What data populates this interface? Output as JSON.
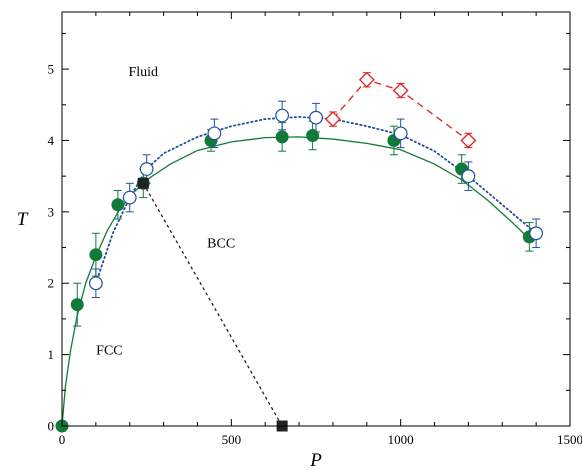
{
  "chart_data": {
    "type": "scatter",
    "xlabel": "P",
    "ylabel": "T",
    "xlim": [
      0,
      1500
    ],
    "ylim": [
      0,
      5.8
    ],
    "x_ticks": [
      0,
      500,
      1000,
      1500
    ],
    "x_tick_labels": [
      "0",
      "500",
      "1000",
      "1500"
    ],
    "y_ticks": [
      0,
      1,
      2,
      3,
      4,
      5
    ],
    "y_tick_labels": [
      "0",
      "1",
      "2",
      "3",
      "4",
      "5"
    ],
    "regions": [
      {
        "label": "Fluid",
        "x": 240,
        "y": 4.9
      },
      {
        "label": "BCC",
        "x": 470,
        "y": 2.5
      },
      {
        "label": "FCC",
        "x": 140,
        "y": 1.0
      }
    ],
    "series": [
      {
        "marker": "filled-circle",
        "color": "#117a3a",
        "errorbar_color": "#117a3a",
        "points": [
          {
            "x": 0,
            "y": 0,
            "err": 0
          },
          {
            "x": 45,
            "y": 1.7,
            "err": 0.3
          },
          {
            "x": 100,
            "y": 2.4,
            "err": 0.3
          },
          {
            "x": 165,
            "y": 3.1,
            "err": 0.2
          },
          {
            "x": 240,
            "y": 3.4,
            "err": 0.2
          },
          {
            "x": 440,
            "y": 4.0,
            "err": 0.15
          },
          {
            "x": 650,
            "y": 4.05,
            "err": 0.2
          },
          {
            "x": 740,
            "y": 4.07,
            "err": 0.2
          },
          {
            "x": 980,
            "y": 4.0,
            "err": 0.2
          },
          {
            "x": 1180,
            "y": 3.6,
            "err": 0.2
          },
          {
            "x": 1380,
            "y": 2.65,
            "err": 0.2
          }
        ]
      },
      {
        "marker": "open-circle",
        "color": "#1f4fa0",
        "errorbar_color": "#1f4fa0",
        "points": [
          {
            "x": 100,
            "y": 2.0,
            "err": 0.2
          },
          {
            "x": 200,
            "y": 3.2,
            "err": 0.2
          },
          {
            "x": 250,
            "y": 3.6,
            "err": 0.2
          },
          {
            "x": 450,
            "y": 4.1,
            "err": 0.2
          },
          {
            "x": 650,
            "y": 4.35,
            "err": 0.2
          },
          {
            "x": 750,
            "y": 4.32,
            "err": 0.2
          },
          {
            "x": 1000,
            "y": 4.1,
            "err": 0.2
          },
          {
            "x": 1200,
            "y": 3.5,
            "err": 0.2
          },
          {
            "x": 1400,
            "y": 2.7,
            "err": 0.2
          }
        ]
      },
      {
        "marker": "open-diamond",
        "color": "#e0201b",
        "errorbar_color": "#e0201b",
        "points": [
          {
            "x": 800,
            "y": 4.3,
            "err": 0.1
          },
          {
            "x": 900,
            "y": 4.85,
            "err": 0.1
          },
          {
            "x": 1000,
            "y": 4.7,
            "err": 0.1
          },
          {
            "x": 1200,
            "y": 4.0,
            "err": 0.1
          }
        ]
      },
      {
        "marker": "filled-square",
        "color": "#222222",
        "points": [
          {
            "x": 240,
            "y": 3.4
          },
          {
            "x": 650,
            "y": 0
          }
        ]
      }
    ],
    "curves": [
      {
        "style": "solid",
        "color": "#117a3a",
        "points": [
          [
            0,
            0
          ],
          [
            10,
            0.55
          ],
          [
            25,
            1.05
          ],
          [
            45,
            1.55
          ],
          [
            70,
            2.0
          ],
          [
            100,
            2.38
          ],
          [
            135,
            2.75
          ],
          [
            170,
            3.03
          ],
          [
            210,
            3.27
          ],
          [
            260,
            3.48
          ],
          [
            320,
            3.67
          ],
          [
            400,
            3.86
          ],
          [
            500,
            3.98
          ],
          [
            600,
            4.04
          ],
          [
            700,
            4.05
          ],
          [
            800,
            4.02
          ],
          [
            900,
            3.96
          ],
          [
            1000,
            3.87
          ],
          [
            1100,
            3.67
          ],
          [
            1180,
            3.45
          ],
          [
            1260,
            3.15
          ],
          [
            1330,
            2.85
          ],
          [
            1380,
            2.62
          ]
        ]
      },
      {
        "style": "dotted",
        "color": "#1f4fa0",
        "points": [
          [
            100,
            2.0
          ],
          [
            150,
            2.7
          ],
          [
            200,
            3.2
          ],
          [
            250,
            3.6
          ],
          [
            300,
            3.82
          ],
          [
            400,
            4.05
          ],
          [
            500,
            4.2
          ],
          [
            600,
            4.3
          ],
          [
            700,
            4.33
          ],
          [
            800,
            4.3
          ],
          [
            900,
            4.2
          ],
          [
            1000,
            4.08
          ],
          [
            1100,
            3.85
          ],
          [
            1200,
            3.5
          ],
          [
            1300,
            3.1
          ],
          [
            1400,
            2.7
          ]
        ]
      },
      {
        "style": "dashed",
        "color": "#e0201b",
        "points": [
          [
            800,
            4.3
          ],
          [
            900,
            4.85
          ],
          [
            1000,
            4.7
          ],
          [
            1200,
            4.0
          ]
        ]
      },
      {
        "style": "short-dashed",
        "color": "#222222",
        "points": [
          [
            240,
            3.4
          ],
          [
            650,
            0
          ]
        ]
      }
    ]
  }
}
